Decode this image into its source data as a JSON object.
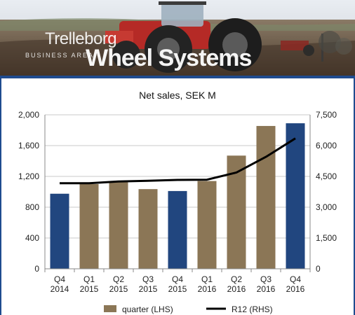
{
  "banner": {
    "brand_top": "Trelleborg",
    "brand_sub": "BUSINESS AREA",
    "brand_main": "Wheel Systems"
  },
  "chart_data": {
    "type": "bar",
    "title": "Net sales, SEK M",
    "categories": [
      [
        "Q4",
        "2014"
      ],
      [
        "Q1",
        "2015"
      ],
      [
        "Q2",
        "2015"
      ],
      [
        "Q3",
        "2015"
      ],
      [
        "Q4",
        "2015"
      ],
      [
        "Q1",
        "2016"
      ],
      [
        "Q2",
        "2016"
      ],
      [
        "Q3",
        "2016"
      ],
      [
        "Q4",
        "2016"
      ]
    ],
    "series": [
      {
        "name": "quarter (LHS)",
        "type": "bar",
        "axis": "left",
        "values": [
          975,
          1100,
          1125,
          1035,
          1010,
          1140,
          1470,
          1855,
          1890
        ],
        "colors": [
          "#21467f",
          "#8b7656",
          "#8b7656",
          "#8b7656",
          "#21467f",
          "#8b7656",
          "#8b7656",
          "#8b7656",
          "#21467f"
        ]
      },
      {
        "name": "R12 (RHS)",
        "type": "line",
        "axis": "right",
        "values": [
          4170,
          4170,
          4250,
          4290,
          4330,
          4340,
          4690,
          5450,
          6350
        ],
        "color": "#000000"
      }
    ],
    "ylim_left": [
      0,
      2000
    ],
    "yticks_left": [
      "0",
      "400",
      "800",
      "1,200",
      "1,600",
      "2,000"
    ],
    "ylim_right": [
      0,
      7500
    ],
    "yticks_right": [
      "0",
      "1,500",
      "3,000",
      "4,500",
      "6,000",
      "7,500"
    ],
    "grid": true,
    "legend_position": "bottom"
  }
}
